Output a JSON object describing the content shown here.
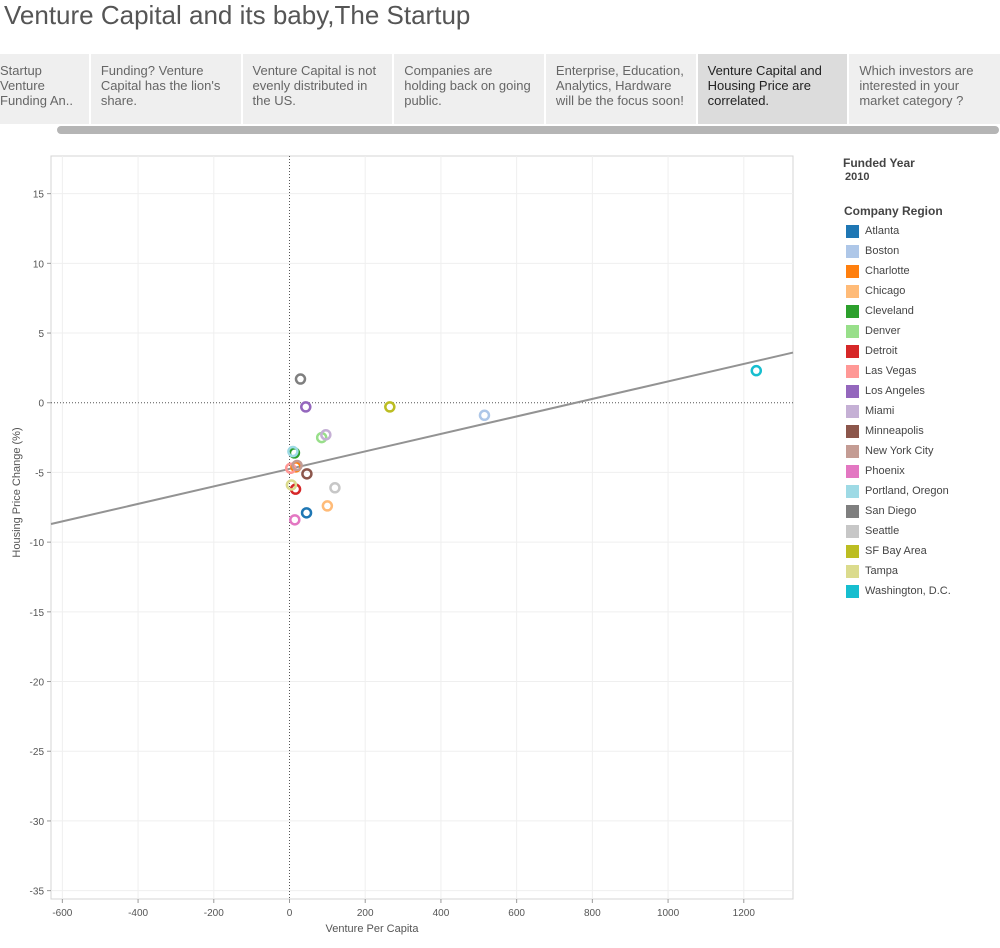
{
  "story_title": "Venture Capital and its baby,The Startup",
  "tabs": [
    {
      "label": "Startup Venture Funding An..",
      "active": false
    },
    {
      "label": "Funding? Venture Capital has the lion's share.",
      "active": false
    },
    {
      "label": "Venture Capital is not evenly distributed in the US.",
      "active": false
    },
    {
      "label": "Companies are holding back on going public.",
      "active": false
    },
    {
      "label": "Enterprise, Education, Analytics, Hardware will be the focus soon!",
      "active": false
    },
    {
      "label": "Venture Capital and Housing Price are correlated.",
      "active": true
    },
    {
      "label": "Which investors are interested in your market category ?",
      "active": false
    }
  ],
  "legend": {
    "year_title": "Funded Year",
    "year_value": "2010",
    "region_title": "Company Region"
  },
  "chart_data": {
    "type": "scatter",
    "xlabel": "Venture Per Capita",
    "ylabel": "Housing Price Change (%)",
    "xlim": [
      -630,
      1330
    ],
    "ylim": [
      -35.6,
      17.7
    ],
    "x_ticks": [
      -600,
      -400,
      -200,
      0,
      200,
      400,
      600,
      800,
      1000,
      1200
    ],
    "y_ticks": [
      15,
      10,
      5,
      0,
      -5,
      -10,
      -15,
      -20,
      -25,
      -30,
      -35
    ],
    "grid": true,
    "legend_position": "right",
    "trend_line": {
      "x": [
        -630,
        1330
      ],
      "y": [
        -8.7,
        3.6
      ],
      "color": "#939393"
    },
    "series": [
      {
        "name": "Atlanta",
        "color": "#1f77b4",
        "points": [
          [
            45,
            -7.9
          ]
        ]
      },
      {
        "name": "Boston",
        "color": "#aec7e8",
        "points": [
          [
            515,
            -0.9
          ]
        ]
      },
      {
        "name": "Charlotte",
        "color": "#ff7f0e",
        "points": [
          [
            17,
            -4.6
          ]
        ]
      },
      {
        "name": "Chicago",
        "color": "#ffbb78",
        "points": [
          [
            100,
            -7.4
          ]
        ]
      },
      {
        "name": "Cleveland",
        "color": "#2ca02c",
        "points": [
          [
            13,
            -3.6
          ]
        ]
      },
      {
        "name": "Denver",
        "color": "#98df8a",
        "points": [
          [
            85,
            -2.5
          ]
        ]
      },
      {
        "name": "Detroit",
        "color": "#d62728",
        "points": [
          [
            16,
            -6.2
          ]
        ]
      },
      {
        "name": "Las Vegas",
        "color": "#ff9896",
        "points": [
          [
            3,
            -4.7
          ]
        ]
      },
      {
        "name": "Los Angeles",
        "color": "#9467bd",
        "points": [
          [
            43,
            -0.3
          ]
        ]
      },
      {
        "name": "Miami",
        "color": "#c5b0d5",
        "points": [
          [
            96,
            -2.3
          ]
        ]
      },
      {
        "name": "Minneapolis",
        "color": "#8c564b",
        "points": [
          [
            46,
            -5.1
          ]
        ]
      },
      {
        "name": "New York City",
        "color": "#c49c94",
        "points": [
          [
            20,
            -4.5
          ]
        ]
      },
      {
        "name": "Phoenix",
        "color": "#e377c2",
        "points": [
          [
            14,
            -8.4
          ]
        ]
      },
      {
        "name": "Portland, Oregon",
        "color": "#9edae5",
        "points": [
          [
            9,
            -3.5
          ]
        ]
      },
      {
        "name": "San Diego",
        "color": "#7f7f7f",
        "points": [
          [
            29,
            1.7
          ]
        ]
      },
      {
        "name": "Seattle",
        "color": "#c7c7c7",
        "points": [
          [
            120,
            -6.1
          ]
        ]
      },
      {
        "name": "SF Bay Area",
        "color": "#bcbd22",
        "points": [
          [
            265,
            -0.3
          ]
        ]
      },
      {
        "name": "Tampa",
        "color": "#dbdb8d",
        "points": [
          [
            5,
            -5.9
          ]
        ]
      },
      {
        "name": "Washington, D.C.",
        "color": "#17becf",
        "points": [
          [
            1233,
            2.3
          ]
        ]
      }
    ]
  }
}
